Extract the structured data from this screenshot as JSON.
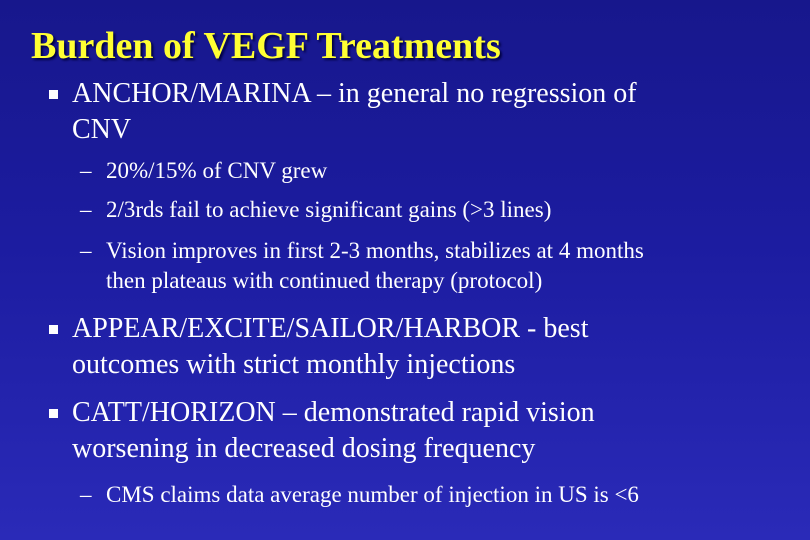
{
  "slide": {
    "title": "Burden of VEGF Treatments",
    "bullets": [
      {
        "line1": "ANCHOR/MARINA – in general no regression of",
        "line2": "CNV",
        "sub": [
          {
            "line1": "20%/15%  of CNV grew"
          },
          {
            "line1": "2/3rds fail to achieve significant gains (>3 lines)"
          },
          {
            "line1": "Vision improves in first 2-3 months, stabilizes at 4 months",
            "line2": "then plateaus with continued therapy (protocol)"
          }
        ]
      },
      {
        "line1": "APPEAR/EXCITE/SAILOR/HARBOR  -  best",
        "line2": "outcomes with strict monthly injections"
      },
      {
        "line1": "CATT/HORIZON – demonstrated rapid vision",
        "line2": "worsening in decreased dosing frequency",
        "sub": [
          {
            "line1": "CMS claims data average number of injection in US is <6"
          }
        ]
      }
    ],
    "bullet_marker": "square",
    "sub_marker": "–"
  }
}
